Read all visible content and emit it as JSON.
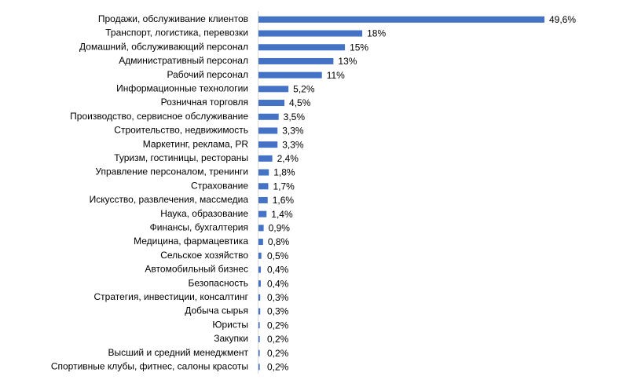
{
  "chart_data": {
    "type": "bar",
    "orientation": "horizontal",
    "bar_color": "#4472C4",
    "axis_color": "#D9D9D9",
    "title": "",
    "xlabel": "",
    "ylabel": "",
    "xlim": [
      0,
      50
    ],
    "grid": false,
    "legend": "none",
    "categories": [
      "Продажи, обслуживание клиентов",
      "Транспорт, логистика, перевозки",
      "Домашний, обслуживающий персонал",
      "Административный персонал",
      "Рабочий персонал",
      "Информационные технологии",
      "Розничная торговля",
      "Производство, сервисное обслуживание",
      "Строительство, недвижимость",
      "Маркетинг, реклама, PR",
      "Туризм, гостиницы, рестораны",
      "Управление персоналом, тренинги",
      "Страхование",
      "Искусство, развлечения, массмедиа",
      "Наука, образование",
      "Финансы, бухгалтерия",
      "Медицина, фармацевтика",
      "Сельское хозяйство",
      "Автомобильный бизнес",
      "Безопасность",
      "Стратегия, инвестиции, консалтинг",
      "Добыча сырья",
      "Юристы",
      "Закупки",
      "Высший и средний менеджмент",
      "Спортивные клубы, фитнес, салоны красоты"
    ],
    "values": [
      49.6,
      18,
      15,
      13,
      11,
      5.2,
      4.5,
      3.5,
      3.3,
      3.3,
      2.4,
      1.8,
      1.7,
      1.6,
      1.4,
      0.9,
      0.8,
      0.5,
      0.4,
      0.4,
      0.3,
      0.3,
      0.2,
      0.2,
      0.2,
      0.2
    ],
    "data_labels": [
      "49,6%",
      "18%",
      "15%",
      "13%",
      "11%",
      "5,2%",
      "4,5%",
      "3,5%",
      "3,3%",
      "3,3%",
      "2,4%",
      "1,8%",
      "1,7%",
      "1,6%",
      "1,4%",
      "0,9%",
      "0,8%",
      "0,5%",
      "0,4%",
      "0,4%",
      "0,3%",
      "0,3%",
      "0,2%",
      "0,2%",
      "0,2%",
      "0,2%"
    ]
  }
}
